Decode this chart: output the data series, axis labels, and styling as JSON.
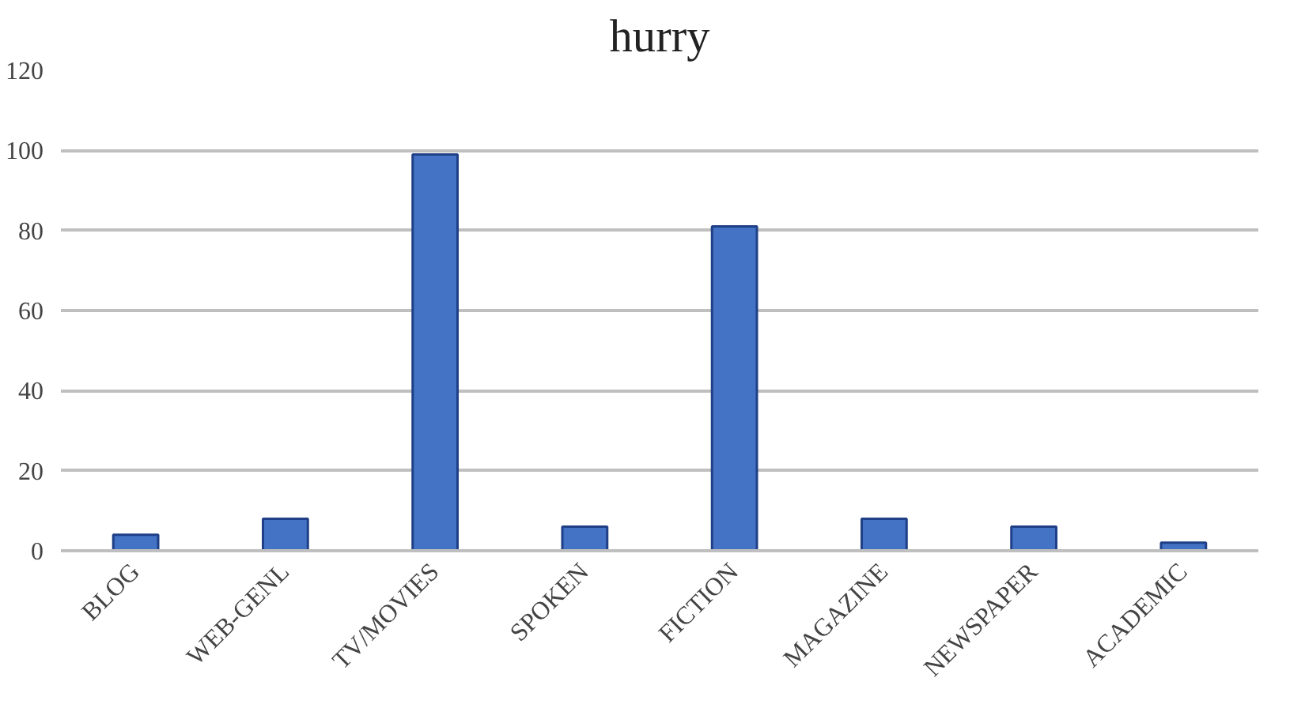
{
  "chart_data": {
    "type": "bar",
    "title": "hurry",
    "categories": [
      "BLOG",
      "WEB-GENL",
      "TV/MOVIES",
      "SPOKEN",
      "FICTION",
      "MAGAZINE",
      "NEWSPAPER",
      "ACADEMIC"
    ],
    "values": [
      4,
      8,
      99,
      6,
      81,
      8,
      6,
      2
    ],
    "color": "#4472c4",
    "ylim": [
      0,
      120
    ],
    "yticks": [
      0,
      20,
      40,
      60,
      80,
      100,
      120
    ],
    "grid": "y"
  }
}
